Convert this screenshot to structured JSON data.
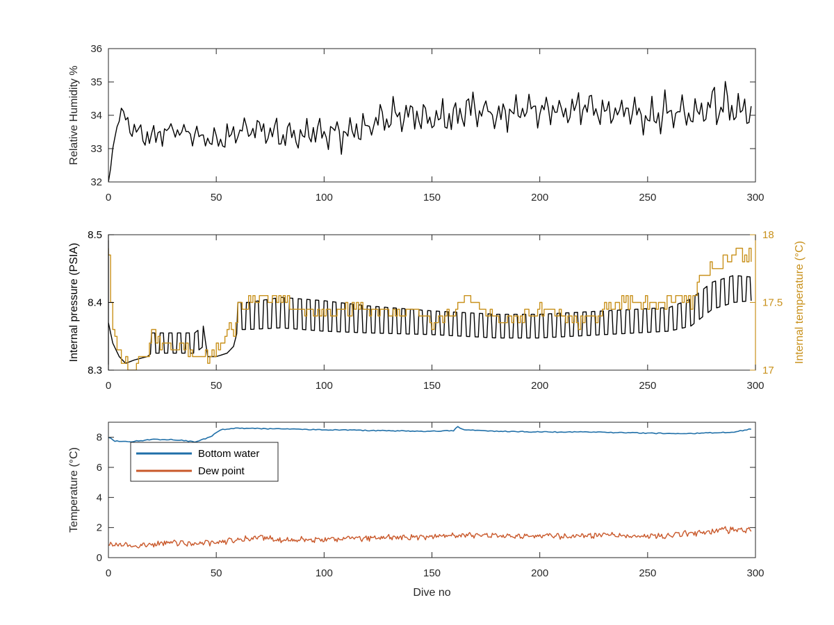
{
  "figure": {
    "colors": {
      "black": "#000000",
      "axis": "#262626",
      "temp_gold": "#c8901a",
      "bottom_water": "#1f6fa8",
      "dew_point": "#c9582a"
    }
  },
  "chart_data": [
    {
      "type": "line",
      "xlabel": "",
      "ylabel": "Relative Humidity %",
      "xlim": [
        0,
        300
      ],
      "ylim": [
        32,
        36
      ],
      "xticks": [
        "0",
        "50",
        "100",
        "150",
        "200",
        "250",
        "300"
      ],
      "yticks": [
        "32",
        "33",
        "34",
        "35",
        "36"
      ],
      "grid": false,
      "series": [
        {
          "color": "#000000",
          "style": "fluctuating",
          "x": [
            0,
            1,
            2,
            4,
            6,
            10,
            15,
            20,
            30,
            40,
            50,
            60,
            70,
            80,
            90,
            100,
            110,
            120,
            130,
            140,
            150,
            160,
            170,
            180,
            190,
            200,
            210,
            220,
            230,
            240,
            250,
            260,
            270,
            280,
            290,
            298
          ],
          "y": [
            32.0,
            32.4,
            33.0,
            33.7,
            34.1,
            33.7,
            33.4,
            33.3,
            33.6,
            33.4,
            33.2,
            33.5,
            33.6,
            33.4,
            33.4,
            33.5,
            33.4,
            33.6,
            34.0,
            34.1,
            33.9,
            34.0,
            34.2,
            34.0,
            34.1,
            34.1,
            34.2,
            34.2,
            34.1,
            34.1,
            34.0,
            34.1,
            34.1,
            34.3,
            34.2,
            34.1
          ],
          "amplitude": [
            0,
            0,
            0,
            0.2,
            0.2,
            0.4,
            0.5,
            0.4,
            0.4,
            0.4,
            0.4,
            0.5,
            0.5,
            0.5,
            0.5,
            0.6,
            0.6,
            0.6,
            0.6,
            0.6,
            0.6,
            0.6,
            0.6,
            0.6,
            0.6,
            0.6,
            0.6,
            0.6,
            0.6,
            0.6,
            0.7,
            0.7,
            0.7,
            0.8,
            0.9,
            0.6
          ]
        }
      ]
    },
    {
      "type": "line",
      "xlabel": "",
      "ylabel": "Internal pressure (PSIA)",
      "ylabel_right": "Internal temperature (°C)",
      "xlim": [
        0,
        300
      ],
      "ylim": [
        8.3,
        8.5
      ],
      "ylim_right": [
        17,
        18
      ],
      "xticks": [
        "0",
        "50",
        "100",
        "150",
        "200",
        "250",
        "300"
      ],
      "yticks": [
        "8.3",
        "8.4",
        "8.5"
      ],
      "yticks_right": [
        "17",
        "17.5",
        "18"
      ],
      "grid": false,
      "series": [
        {
          "color": "#000000",
          "axis": "left",
          "style": "oscillating",
          "x": [
            0,
            2,
            5,
            8,
            12,
            18,
            20,
            30,
            40,
            44,
            46,
            50,
            55,
            58,
            60,
            65,
            80,
            100,
            120,
            150,
            180,
            200,
            230,
            260,
            270,
            280,
            290,
            298
          ],
          "y": [
            8.37,
            8.34,
            8.32,
            8.31,
            8.315,
            8.32,
            8.34,
            8.34,
            8.34,
            8.35,
            8.32,
            8.32,
            8.325,
            8.335,
            8.38,
            8.38,
            8.385,
            8.38,
            8.375,
            8.37,
            8.365,
            8.365,
            8.37,
            8.375,
            8.385,
            8.41,
            8.42,
            8.42
          ],
          "amplitude": [
            0,
            0,
            0,
            0,
            0,
            0,
            0.03,
            0.03,
            0.03,
            0.03,
            0,
            0,
            0,
            0,
            0.04,
            0.04,
            0.045,
            0.045,
            0.04,
            0.035,
            0.035,
            0.035,
            0.035,
            0.035,
            0.04,
            0.04,
            0.04,
            0.035
          ]
        },
        {
          "color": "#c8901a",
          "axis": "right",
          "style": "stepped",
          "x": [
            0,
            1,
            2,
            3,
            5,
            8,
            10,
            14,
            18,
            20,
            25,
            30,
            35,
            40,
            48,
            52,
            56,
            58,
            60,
            65,
            70,
            80,
            90,
            100,
            110,
            120,
            130,
            140,
            150,
            160,
            165,
            170,
            180,
            190,
            200,
            210,
            220,
            230,
            240,
            250,
            260,
            265,
            270,
            272,
            275,
            280,
            290,
            298
          ],
          "y": [
            17.9,
            17.5,
            17.3,
            17.2,
            17.15,
            17.05,
            17.0,
            17.05,
            17.1,
            17.25,
            17.2,
            17.15,
            17.2,
            17.1,
            17.1,
            17.2,
            17.3,
            17.25,
            17.45,
            17.5,
            17.55,
            17.5,
            17.45,
            17.4,
            17.45,
            17.45,
            17.4,
            17.45,
            17.35,
            17.45,
            17.55,
            17.5,
            17.35,
            17.4,
            17.45,
            17.4,
            17.35,
            17.45,
            17.5,
            17.5,
            17.5,
            17.55,
            17.5,
            17.6,
            17.7,
            17.75,
            17.85,
            17.85
          ]
        }
      ]
    },
    {
      "type": "line",
      "xlabel": "Dive no",
      "ylabel": "Temperature (°C)",
      "xlim": [
        0,
        300
      ],
      "ylim": [
        0,
        9
      ],
      "xticks": [
        "0",
        "50",
        "100",
        "150",
        "200",
        "250",
        "300"
      ],
      "yticks": [
        "0",
        "2",
        "4",
        "6",
        "8"
      ],
      "grid": false,
      "legend_position": "top-left",
      "series": [
        {
          "name": "Bottom water",
          "color": "#1f6fa8",
          "style": "smooth",
          "x": [
            0,
            3,
            10,
            20,
            30,
            40,
            45,
            48,
            52,
            60,
            80,
            100,
            120,
            150,
            160,
            162,
            165,
            180,
            200,
            220,
            240,
            260,
            270,
            280,
            290,
            298
          ],
          "y": [
            8.0,
            7.75,
            7.7,
            7.85,
            7.85,
            7.7,
            7.9,
            8.1,
            8.5,
            8.6,
            8.55,
            8.5,
            8.45,
            8.4,
            8.45,
            8.7,
            8.5,
            8.4,
            8.35,
            8.35,
            8.3,
            8.25,
            8.25,
            8.3,
            8.35,
            8.55
          ]
        },
        {
          "name": "Dew point",
          "color": "#c9582a",
          "style": "noisy",
          "x": [
            0,
            10,
            20,
            30,
            40,
            50,
            60,
            70,
            80,
            100,
            120,
            150,
            170,
            200,
            230,
            250,
            270,
            280,
            290,
            298
          ],
          "y": [
            0.9,
            0.8,
            0.9,
            1.0,
            0.9,
            1.0,
            1.2,
            1.3,
            1.2,
            1.2,
            1.3,
            1.4,
            1.5,
            1.4,
            1.5,
            1.4,
            1.6,
            1.8,
            1.9,
            1.8
          ],
          "amplitude": [
            0.15,
            0.2,
            0.2,
            0.2,
            0.2,
            0.2,
            0.2,
            0.2,
            0.2,
            0.2,
            0.2,
            0.2,
            0.2,
            0.2,
            0.2,
            0.2,
            0.25,
            0.25,
            0.3,
            0.2
          ]
        }
      ]
    }
  ]
}
